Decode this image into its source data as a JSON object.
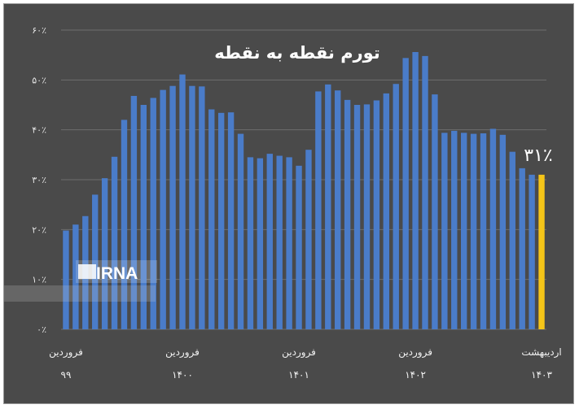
{
  "chart_data": {
    "type": "bar",
    "title": "تورم نقطه به نقطه",
    "xlabel": "",
    "ylabel": "",
    "ylim": [
      0,
      60
    ],
    "y_ticks": [
      "۰٪",
      "۱۰٪",
      "۲۰٪",
      "۳۰٪",
      "۴۰٪",
      "۵۰٪",
      "۶۰٪"
    ],
    "grid": true,
    "x_labels": [
      {
        "index": 0,
        "month": "فروردین",
        "year": "۹۹"
      },
      {
        "index": 12,
        "month": "فروردین",
        "year": "۱۴۰۰"
      },
      {
        "index": 24,
        "month": "فروردین",
        "year": "۱۴۰۱"
      },
      {
        "index": 36,
        "month": "فروردین",
        "year": "۱۴۰۲"
      },
      {
        "index": 49,
        "month": "اردیبهشت",
        "year": "۱۴۰۳"
      }
    ],
    "values": [
      19.8,
      21.0,
      22.7,
      27.0,
      30.3,
      34.6,
      42.0,
      46.8,
      45.0,
      46.4,
      48.0,
      48.8,
      51.1,
      48.8,
      48.7,
      44.1,
      43.4,
      43.5,
      39.2,
      34.5,
      34.3,
      35.2,
      34.8,
      34.5,
      32.8,
      36.0,
      47.7,
      49.1,
      47.9,
      46.0,
      45.0,
      45.1,
      45.9,
      47.3,
      49.2,
      54.4,
      55.6,
      54.8,
      47.1,
      39.4,
      39.8,
      39.4,
      39.2,
      39.3,
      40.2,
      39.0,
      35.6,
      32.3,
      31.0,
      31.0
    ],
    "bar_color": "#4a7cc9",
    "highlight_color": "#f5c518",
    "highlight_index": 49,
    "highlight_label": "۳۱٪",
    "background_color": "#4a4a4a"
  },
  "watermark": {
    "text": "IRNA"
  }
}
